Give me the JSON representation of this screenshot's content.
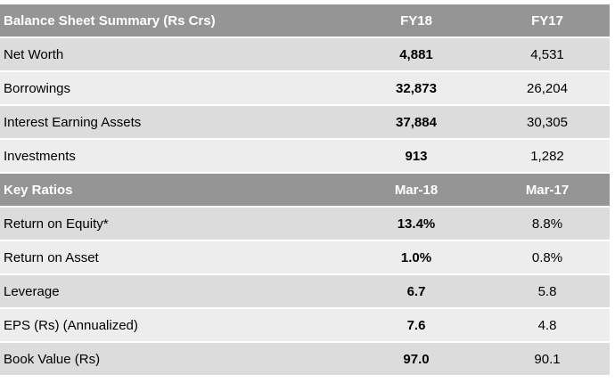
{
  "sections": [
    {
      "header": {
        "label": "Balance Sheet Summary (Rs Crs)",
        "col1": "FY18",
        "col2": "FY17"
      },
      "rows": [
        {
          "label": "Net Worth",
          "v1": "4,881",
          "v2": "4,531"
        },
        {
          "label": "Borrowings",
          "v1": "32,873",
          "v2": "26,204"
        },
        {
          "label": "Interest Earning Assets",
          "v1": "37,884",
          "v2": "30,305"
        },
        {
          "label": "Investments",
          "v1": "913",
          "v2": "1,282"
        }
      ]
    },
    {
      "header": {
        "label": "Key Ratios",
        "col1": "Mar-18",
        "col2": "Mar-17"
      },
      "rows": [
        {
          "label": "Return on Equity*",
          "v1": "13.4%",
          "v2": "8.8%"
        },
        {
          "label": "Return on Asset",
          "v1": "1.0%",
          "v2": "0.8%"
        },
        {
          "label": "Leverage",
          "v1": "6.7",
          "v2": "5.8"
        },
        {
          "label": "EPS (Rs) (Annualized)",
          "v1": "7.6",
          "v2": "4.8"
        },
        {
          "label": "Book Value (Rs)",
          "v1": "97.0",
          "v2": "90.1"
        }
      ]
    }
  ]
}
